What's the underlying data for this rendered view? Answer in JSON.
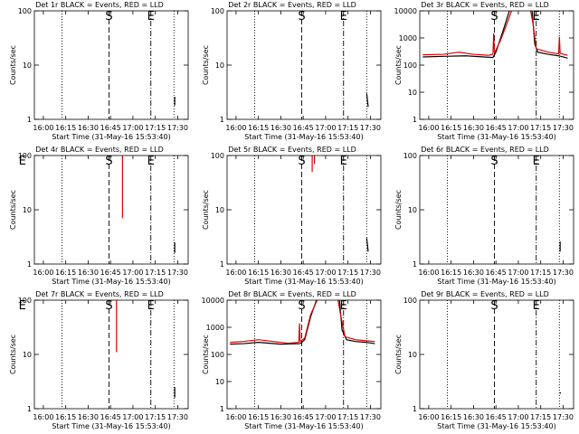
{
  "chart_data": [
    {
      "type": "line",
      "title": "Det 1r BLACK = Events, RED = LLD",
      "ylabel": "Counts/sec",
      "xlabel": "Start Time (31-May-16 15:53:40)",
      "log_y": true,
      "xlim": [
        954,
        1057
      ],
      "xticks": [
        {
          "value": 960,
          "label": "16:00"
        },
        {
          "value": 975,
          "label": "16:15"
        },
        {
          "value": 990,
          "label": "16:30"
        },
        {
          "value": 1005,
          "label": "16:45"
        },
        {
          "value": 1020,
          "label": "17:00"
        },
        {
          "value": 1035,
          "label": "17:15"
        },
        {
          "value": 1050,
          "label": "17:30"
        }
      ],
      "ylim": [
        1,
        100
      ],
      "yticks": [
        1,
        10,
        100
      ],
      "vlines": [
        {
          "x": 972.5,
          "style": "dotted"
        },
        {
          "x": 1004,
          "style": "dashed"
        },
        {
          "x": 1032,
          "style": "dashdot"
        },
        {
          "x": 1047.5,
          "style": "dotted"
        }
      ],
      "annotations": [
        {
          "text": "S",
          "x": 1004
        },
        {
          "text": "E",
          "x": 1032
        }
      ],
      "series": [
        {
          "color": "#000000",
          "x": [
            1048,
            1048
          ],
          "values": [
            1.8,
            2.6
          ]
        }
      ]
    },
    {
      "type": "line",
      "title": "Det 2r BLACK = Events, RED = LLD",
      "ylabel": "Counts/sec",
      "xlabel": "Start Time (31-May-16 15:53:40)",
      "log_y": true,
      "xlim": [
        954,
        1057
      ],
      "xticks": [
        {
          "value": 960,
          "label": "16:00"
        },
        {
          "value": 975,
          "label": "16:15"
        },
        {
          "value": 990,
          "label": "16:30"
        },
        {
          "value": 1005,
          "label": "16:45"
        },
        {
          "value": 1020,
          "label": "17:00"
        },
        {
          "value": 1035,
          "label": "17:15"
        },
        {
          "value": 1050,
          "label": "17:30"
        }
      ],
      "ylim": [
        1,
        100
      ],
      "yticks": [
        1,
        10,
        100
      ],
      "vlines": [
        {
          "x": 972.5,
          "style": "dotted"
        },
        {
          "x": 1004,
          "style": "dashed"
        },
        {
          "x": 1032,
          "style": "dashdot"
        },
        {
          "x": 1047.5,
          "style": "dotted"
        }
      ],
      "annotations": [
        {
          "text": "S",
          "x": 1004
        },
        {
          "text": "E",
          "x": 1032
        }
      ],
      "series": [
        {
          "color": "#000000",
          "x": [
            1047.5,
            1048.5
          ],
          "values": [
            3,
            1.7
          ]
        }
      ]
    },
    {
      "type": "line",
      "title": "Det 3r BLACK = Events, RED = LLD",
      "ylabel": "Counts/sec",
      "xlabel": "Start Time (31-May-16 15:53:40)",
      "log_y": true,
      "xlim": [
        954,
        1057
      ],
      "xticks": [
        {
          "value": 960,
          "label": "16:00"
        },
        {
          "value": 975,
          "label": "16:15"
        },
        {
          "value": 990,
          "label": "16:30"
        },
        {
          "value": 1005,
          "label": "16:45"
        },
        {
          "value": 1020,
          "label": "17:00"
        },
        {
          "value": 1035,
          "label": "17:15"
        },
        {
          "value": 1050,
          "label": "17:30"
        }
      ],
      "ylim": [
        1,
        10000
      ],
      "yticks": [
        1,
        10,
        100,
        1000,
        10000
      ],
      "vlines": [
        {
          "x": 972.5,
          "style": "dotted"
        },
        {
          "x": 1004,
          "style": "dashed"
        },
        {
          "x": 1032,
          "style": "dashdot"
        },
        {
          "x": 1047.5,
          "style": "dotted"
        }
      ],
      "annotations": [
        {
          "text": "S",
          "x": 1004
        },
        {
          "text": "E",
          "x": 1032
        }
      ],
      "series": [
        {
          "color": "#000000",
          "x": [
            956,
            970,
            985,
            1003,
            1005,
            1010,
            1015,
            1029,
            1031,
            1033,
            1040,
            1047,
            1050,
            1053
          ],
          "values": [
            200,
            210,
            220,
            190,
            300,
            2000,
            15000,
            15000,
            600,
            300,
            250,
            220,
            200,
            180
          ]
        },
        {
          "color": "#dd0000",
          "x": [
            956,
            970,
            980,
            990,
            1000,
            1003,
            1003.5,
            1004,
            1008,
            1012,
            1016,
            1028,
            1030,
            1032,
            1040,
            1047,
            1047.5,
            1048,
            1053
          ],
          "values": [
            240,
            250,
            300,
            250,
            230,
            250,
            1500,
            280,
            800,
            3000,
            12000,
            12000,
            3000,
            400,
            300,
            260,
            1100,
            270,
            230
          ]
        }
      ]
    },
    {
      "type": "line",
      "title": "Det 4r BLACK = Events, RED = LLD",
      "ylabel": "Counts/sec",
      "xlabel": "Start Time (31-May-16 15:53:40)",
      "log_y": true,
      "xlim": [
        954,
        1057
      ],
      "xticks": [
        {
          "value": 960,
          "label": "16:00"
        },
        {
          "value": 975,
          "label": "16:15"
        },
        {
          "value": 990,
          "label": "16:30"
        },
        {
          "value": 1005,
          "label": "16:45"
        },
        {
          "value": 1020,
          "label": "17:00"
        },
        {
          "value": 1035,
          "label": "17:15"
        },
        {
          "value": 1050,
          "label": "17:30"
        }
      ],
      "ylim": [
        1,
        100
      ],
      "yticks": [
        1,
        10,
        100
      ],
      "vlines": [
        {
          "x": 972.5,
          "style": "dotted"
        },
        {
          "x": 1004,
          "style": "dashed"
        },
        {
          "x": 1032,
          "style": "dashdot"
        },
        {
          "x": 1047.5,
          "style": "dotted"
        }
      ],
      "annotations": [
        {
          "text": "E",
          "x": 946
        },
        {
          "text": "S",
          "x": 1004
        },
        {
          "text": "E",
          "x": 1032
        }
      ],
      "series": [
        {
          "color": "#000000",
          "x": [
            1048,
            1048
          ],
          "values": [
            1.6,
            2.5
          ]
        },
        {
          "color": "#dd0000",
          "x": [
            1013,
            1013
          ],
          "values": [
            120,
            7
          ]
        }
      ]
    },
    {
      "type": "line",
      "title": "Det 5r BLACK = Events, RED = LLD",
      "ylabel": "Counts/sec",
      "xlabel": "Start Time (31-May-16 15:53:40)",
      "log_y": true,
      "xlim": [
        954,
        1057
      ],
      "xticks": [
        {
          "value": 960,
          "label": "16:00"
        },
        {
          "value": 975,
          "label": "16:15"
        },
        {
          "value": 990,
          "label": "16:30"
        },
        {
          "value": 1005,
          "label": "16:45"
        },
        {
          "value": 1020,
          "label": "17:00"
        },
        {
          "value": 1035,
          "label": "17:15"
        },
        {
          "value": 1050,
          "label": "17:30"
        }
      ],
      "ylim": [
        1,
        100
      ],
      "yticks": [
        1,
        10,
        100
      ],
      "vlines": [
        {
          "x": 972.5,
          "style": "dotted"
        },
        {
          "x": 1004,
          "style": "dashed"
        },
        {
          "x": 1032,
          "style": "dashdot"
        },
        {
          "x": 1047.5,
          "style": "dotted"
        }
      ],
      "annotations": [
        {
          "text": "S",
          "x": 1004
        },
        {
          "text": "E",
          "x": 1032
        }
      ],
      "series": [
        {
          "color": "#000000",
          "x": [
            1047.5,
            1048.5
          ],
          "values": [
            3,
            1.7
          ]
        },
        {
          "color": "#dd0000",
          "x": [
            1011,
            1011
          ],
          "values": [
            100,
            50
          ]
        },
        {
          "color": "#dd0000",
          "x": [
            1012.5,
            1012.5
          ],
          "values": [
            100,
            70
          ]
        }
      ]
    },
    {
      "type": "line",
      "title": "Det 6r BLACK = Events, RED = LLD",
      "ylabel": "Counts/sec",
      "xlabel": "Start Time (31-May-16 15:53:40)",
      "log_y": true,
      "xlim": [
        954,
        1057
      ],
      "xticks": [
        {
          "value": 960,
          "label": "16:00"
        },
        {
          "value": 975,
          "label": "16:15"
        },
        {
          "value": 990,
          "label": "16:30"
        },
        {
          "value": 1005,
          "label": "16:45"
        },
        {
          "value": 1020,
          "label": "17:00"
        },
        {
          "value": 1035,
          "label": "17:15"
        },
        {
          "value": 1050,
          "label": "17:30"
        }
      ],
      "ylim": [
        1,
        100
      ],
      "yticks": [
        1,
        10,
        100
      ],
      "vlines": [
        {
          "x": 972.5,
          "style": "dotted"
        },
        {
          "x": 1004,
          "style": "dashed"
        },
        {
          "x": 1032,
          "style": "dashdot"
        },
        {
          "x": 1047.5,
          "style": "dotted"
        }
      ],
      "annotations": [
        {
          "text": "S",
          "x": 1004
        },
        {
          "text": "E",
          "x": 1032
        }
      ],
      "series": [
        {
          "color": "#000000",
          "x": [
            1048,
            1048
          ],
          "values": [
            1.7,
            2.6
          ]
        }
      ]
    },
    {
      "type": "line",
      "title": "Det 7r BLACK = Events, RED = LLD",
      "ylabel": "Counts/sec",
      "xlabel": "Start Time (31-May-16 15:53:40)",
      "log_y": true,
      "xlim": [
        954,
        1057
      ],
      "xticks": [
        {
          "value": 960,
          "label": "16:00"
        },
        {
          "value": 975,
          "label": "16:15"
        },
        {
          "value": 990,
          "label": "16:30"
        },
        {
          "value": 1005,
          "label": "16:45"
        },
        {
          "value": 1020,
          "label": "17:00"
        },
        {
          "value": 1035,
          "label": "17:15"
        },
        {
          "value": 1050,
          "label": "17:30"
        }
      ],
      "ylim": [
        1,
        100
      ],
      "yticks": [
        1,
        10,
        100
      ],
      "vlines": [
        {
          "x": 972.5,
          "style": "dotted"
        },
        {
          "x": 1004,
          "style": "dashed"
        },
        {
          "x": 1032,
          "style": "dashdot"
        },
        {
          "x": 1047.5,
          "style": "dotted"
        }
      ],
      "annotations": [
        {
          "text": "E",
          "x": 946
        },
        {
          "text": "S",
          "x": 1004
        },
        {
          "text": "E",
          "x": 1032
        }
      ],
      "series": [
        {
          "color": "#000000",
          "x": [
            1048,
            1048
          ],
          "values": [
            1.6,
            2.5
          ]
        },
        {
          "color": "#dd0000",
          "x": [
            1009,
            1009
          ],
          "values": [
            120,
            11
          ]
        }
      ]
    },
    {
      "type": "line",
      "title": "Det 8r BLACK = Events, RED = LLD",
      "ylabel": "Counts/sec",
      "xlabel": "Start Time (31-May-16 15:53:40)",
      "log_y": true,
      "xlim": [
        954,
        1057
      ],
      "xticks": [
        {
          "value": 960,
          "label": "16:00"
        },
        {
          "value": 975,
          "label": "16:15"
        },
        {
          "value": 990,
          "label": "16:30"
        },
        {
          "value": 1005,
          "label": "16:45"
        },
        {
          "value": 1020,
          "label": "17:00"
        },
        {
          "value": 1035,
          "label": "17:15"
        },
        {
          "value": 1050,
          "label": "17:30"
        }
      ],
      "ylim": [
        1,
        10000
      ],
      "yticks": [
        1,
        10,
        100,
        1000,
        10000
      ],
      "vlines": [
        {
          "x": 972.5,
          "style": "dotted"
        },
        {
          "x": 1004,
          "style": "dashed"
        },
        {
          "x": 1032,
          "style": "dashdot"
        },
        {
          "x": 1047.5,
          "style": "dotted"
        }
      ],
      "annotations": [
        {
          "text": "S",
          "x": 1004
        },
        {
          "text": "E",
          "x": 1032
        }
      ],
      "series": [
        {
          "color": "#000000",
          "x": [
            956,
            965,
            975,
            990,
            1003,
            1006,
            1010,
            1015,
            1029,
            1031,
            1034,
            1040,
            1047,
            1053
          ],
          "values": [
            240,
            250,
            280,
            240,
            250,
            350,
            2500,
            15000,
            15000,
            800,
            350,
            300,
            280,
            250
          ]
        },
        {
          "color": "#dd0000",
          "x": [
            956,
            965,
            975,
            985,
            995,
            1002,
            1002.5,
            1003,
            1006,
            1010,
            1015,
            1028,
            1030,
            1033,
            1040,
            1047,
            1053
          ],
          "values": [
            280,
            300,
            350,
            300,
            260,
            280,
            1400,
            300,
            400,
            3000,
            12000,
            12000,
            3000,
            450,
            350,
            320,
            300
          ]
        }
      ]
    },
    {
      "type": "line",
      "title": "Det 9r BLACK = Events, RED = LLD",
      "ylabel": "Counts/sec",
      "xlabel": "Start Time (31-May-16 15:53:40)",
      "log_y": true,
      "xlim": [
        954,
        1057
      ],
      "xticks": [
        {
          "value": 960,
          "label": "16:00"
        },
        {
          "value": 975,
          "label": "16:15"
        },
        {
          "value": 990,
          "label": "16:30"
        },
        {
          "value": 1005,
          "label": "16:45"
        },
        {
          "value": 1020,
          "label": "17:00"
        },
        {
          "value": 1035,
          "label": "17:15"
        },
        {
          "value": 1050,
          "label": "17:30"
        }
      ],
      "ylim": [
        1,
        100
      ],
      "yticks": [
        1,
        10,
        100
      ],
      "vlines": [
        {
          "x": 972.5,
          "style": "dotted"
        },
        {
          "x": 1004,
          "style": "dashed"
        },
        {
          "x": 1032,
          "style": "dashdot"
        },
        {
          "x": 1047.5,
          "style": "dotted"
        }
      ],
      "annotations": [
        {
          "text": "S",
          "x": 1004
        },
        {
          "text": "E",
          "x": 1032
        }
      ],
      "series": [
        {
          "color": "#000000",
          "x": [
            1048,
            1048.3
          ],
          "values": [
            1.9,
            2
          ]
        }
      ]
    }
  ]
}
